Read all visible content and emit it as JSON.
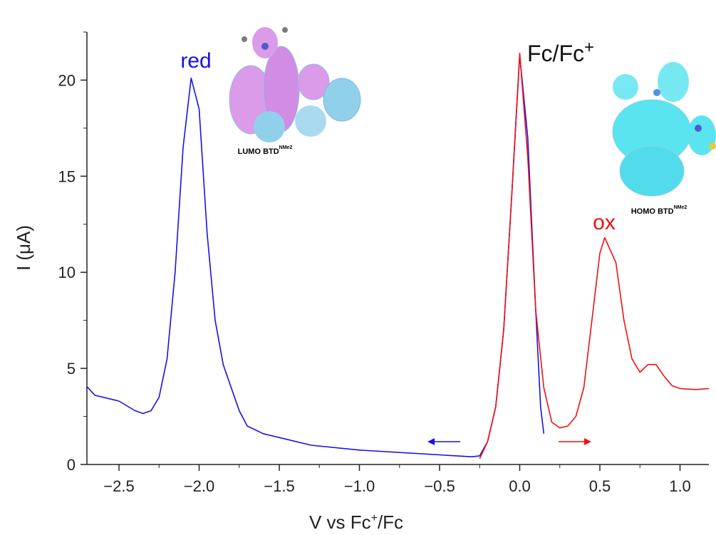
{
  "chart_data": {
    "type": "line",
    "x_label": [
      "V vs Fc",
      "+",
      "/Fc"
    ],
    "y_label": "I (μA)",
    "xlim": [
      -2.7,
      1.18
    ],
    "ylim": [
      0,
      22.5
    ],
    "xticks": [
      {
        "value": -2.5,
        "label": "−2.5"
      },
      {
        "value": -2.0,
        "label": "−2.0"
      },
      {
        "value": -1.5,
        "label": "−1.5"
      },
      {
        "value": -1.0,
        "label": "−1.0"
      },
      {
        "value": -0.5,
        "label": "−0.5"
      },
      {
        "value": 0,
        "label": "0.0"
      },
      0.5,
      {
        "value": 1.0,
        "label": "1.0"
      }
    ],
    "yticks": [
      0,
      5,
      10,
      15,
      20
    ],
    "series": [
      {
        "color": "#1a10e8",
        "x": [
          -2.7,
          -2.65,
          -2.55,
          -2.5,
          -2.4,
          -2.35,
          -2.3,
          -2.25,
          -2.2,
          -2.15,
          -2.1,
          -2.05,
          -2.0,
          -1.95,
          -1.9,
          -1.85,
          -1.8,
          -1.75,
          -1.7,
          -1.6,
          -1.5,
          -1.3,
          -1.0,
          -0.5,
          -0.3,
          -0.25,
          -0.2,
          -0.15,
          -0.1,
          -0.05,
          0.0,
          0.05,
          0.1,
          0.13,
          0.15
        ],
        "values": [
          4.05,
          3.6,
          3.4,
          3.3,
          2.8,
          2.65,
          2.8,
          3.5,
          5.5,
          10,
          16.5,
          20.1,
          18.5,
          12,
          7.5,
          5.2,
          4,
          2.8,
          2.0,
          1.6,
          1.4,
          1.0,
          0.75,
          0.5,
          0.4,
          0.45,
          1.2,
          3,
          7,
          14,
          21.3,
          17,
          8,
          3,
          1.6
        ]
      },
      {
        "color": "#f01010",
        "x": [
          -0.25,
          -0.2,
          -0.15,
          -0.1,
          -0.05,
          0.0,
          0.05,
          0.1,
          0.15,
          0.2,
          0.25,
          0.3,
          0.35,
          0.4,
          0.45,
          0.5,
          0.53,
          0.6,
          0.65,
          0.7,
          0.75,
          0.8,
          0.85,
          0.9,
          0.95,
          1.0,
          1.1,
          1.18
        ],
        "values": [
          0.3,
          1.2,
          3,
          7,
          14,
          21.4,
          16,
          8,
          4,
          2.2,
          1.9,
          2.0,
          2.5,
          4,
          7.5,
          11,
          11.8,
          10.5,
          7.5,
          5.5,
          4.8,
          5.2,
          5.2,
          4.6,
          4.1,
          3.95,
          3.9,
          3.95
        ]
      }
    ],
    "annotations": {
      "red": "red",
      "fc": [
        "Fc/Fc",
        "+"
      ],
      "ox": "ox",
      "lumo": [
        "LUMO BTD",
        "NMe2"
      ],
      "homo": [
        "HOMO BTD",
        "NMe2"
      ]
    }
  }
}
